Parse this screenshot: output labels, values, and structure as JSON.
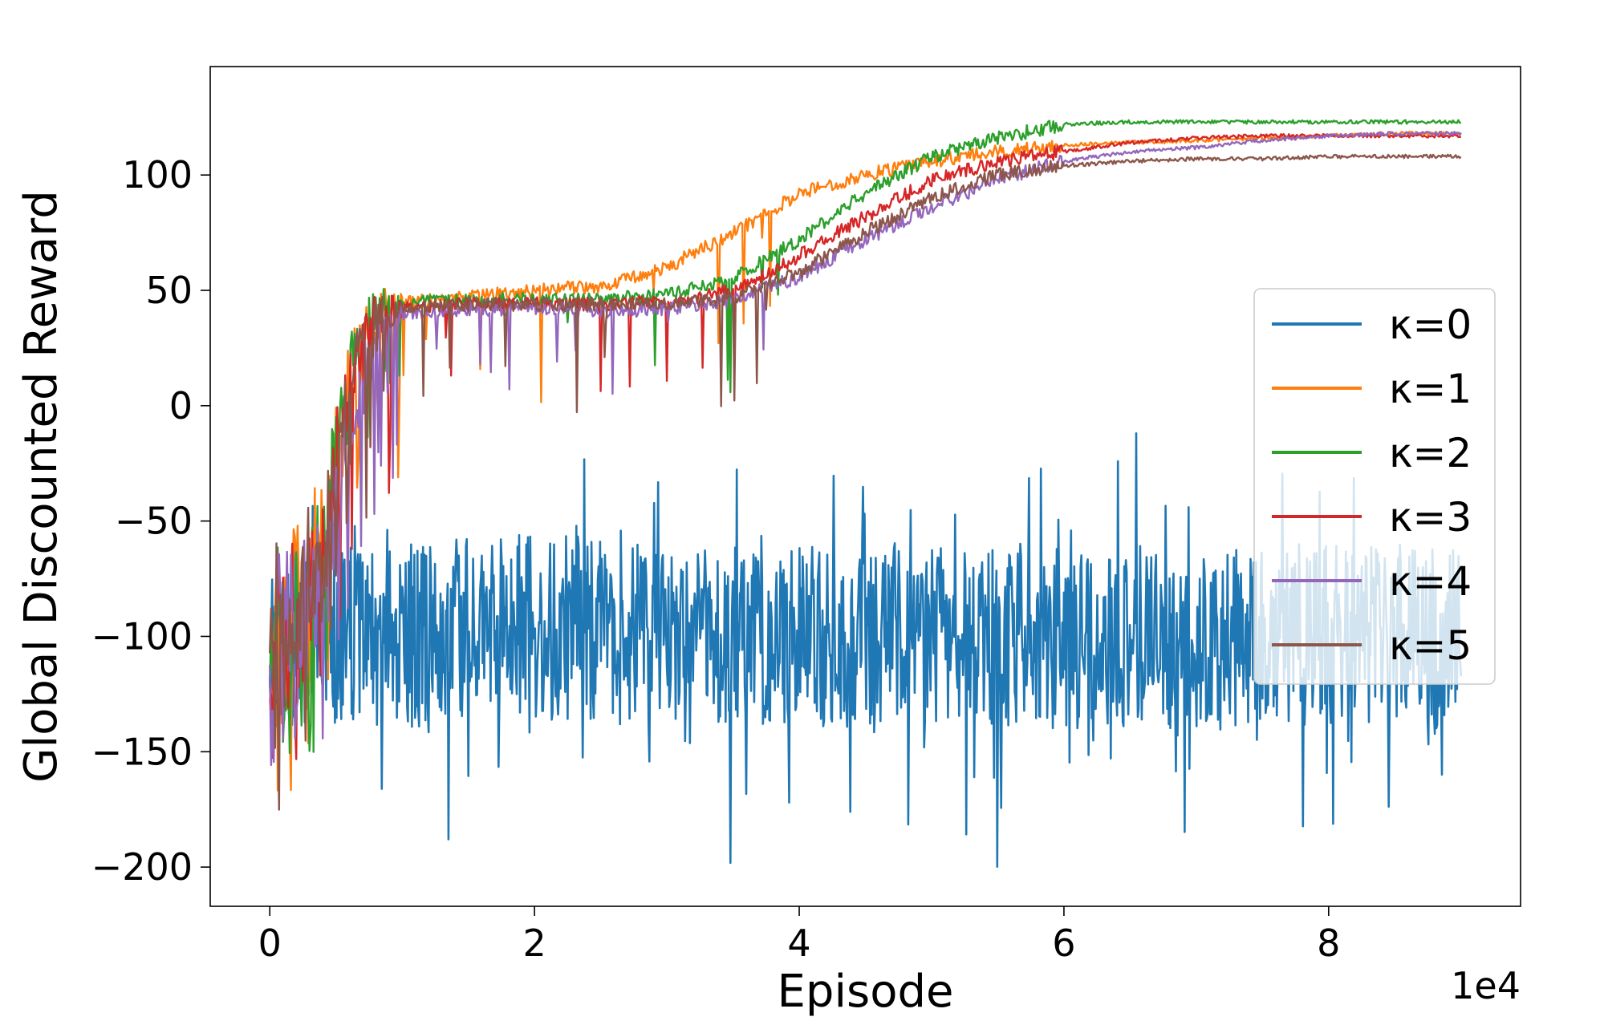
{
  "chart_data": {
    "type": "line",
    "title": "",
    "xlabel": "Episode",
    "ylabel": "Global Discounted Reward",
    "x_offset_text": "1e4",
    "xlim": [
      -0.45,
      9.45
    ],
    "ylim": [
      -217,
      147
    ],
    "x_ticks": [
      0,
      2,
      4,
      6,
      8
    ],
    "x_tick_labels": [
      "0",
      "2",
      "4",
      "6",
      "8"
    ],
    "y_ticks": [
      -200,
      -150,
      -100,
      -50,
      0,
      50,
      100
    ],
    "y_tick_labels": [
      "−200",
      "−150",
      "−100",
      "−50",
      "0",
      "50",
      "100"
    ],
    "grid": false,
    "legend_position": "center-right",
    "series": [
      {
        "name": "κ=0",
        "color": "#1f77b4",
        "x": [
          0,
          0.5,
          1,
          2,
          3,
          4,
          5,
          6,
          7,
          8,
          9
        ],
        "y": [
          -100,
          -100,
          -100,
          -95,
          -100,
          -100,
          -98,
          -100,
          -100,
          -100,
          -100
        ]
      },
      {
        "name": "κ=1",
        "color": "#ff7f0e",
        "x": [
          0,
          0.2,
          0.4,
          0.6,
          0.8,
          1,
          1.5,
          2,
          2.5,
          3,
          3.5,
          4,
          4.5,
          5,
          5.5,
          6,
          6.5,
          7,
          7.5,
          8,
          8.5,
          9
        ],
        "y": [
          -110,
          -90,
          -60,
          10,
          40,
          45,
          47,
          50,
          52,
          60,
          75,
          92,
          100,
          106,
          110,
          113,
          114,
          115,
          116,
          117,
          118,
          118
        ]
      },
      {
        "name": "κ=2",
        "color": "#2ca02c",
        "x": [
          0,
          0.2,
          0.4,
          0.6,
          0.8,
          1,
          1.5,
          2,
          2.5,
          3,
          3.5,
          4,
          4.5,
          5,
          5.5,
          6,
          6.5,
          7,
          7.5,
          8,
          8.5,
          9
        ],
        "y": [
          -110,
          -95,
          -60,
          10,
          40,
          44,
          46,
          46,
          46,
          48,
          55,
          72,
          92,
          108,
          116,
          122,
          123,
          123,
          123,
          123,
          123,
          123
        ]
      },
      {
        "name": "κ=3",
        "color": "#d62728",
        "x": [
          0,
          0.2,
          0.4,
          0.6,
          0.8,
          1,
          1.5,
          2,
          2.5,
          3,
          3.5,
          4,
          4.5,
          5,
          5.5,
          6,
          6.5,
          7,
          7.5,
          8,
          8.5,
          9
        ],
        "y": [
          -110,
          -95,
          -65,
          5,
          38,
          42,
          44,
          44,
          44,
          45,
          50,
          65,
          82,
          98,
          106,
          110,
          114,
          116,
          117,
          117,
          117,
          117
        ]
      },
      {
        "name": "κ=4",
        "color": "#9467bd",
        "x": [
          0,
          0.2,
          0.4,
          0.6,
          0.8,
          1,
          1.5,
          2,
          2.5,
          3,
          3.5,
          4,
          4.5,
          5,
          5.5,
          6,
          6.5,
          7,
          7.5,
          8,
          8.5,
          9
        ],
        "y": [
          -110,
          -100,
          -70,
          -10,
          30,
          40,
          42,
          42,
          41,
          42,
          46,
          56,
          72,
          86,
          98,
          106,
          110,
          112,
          115,
          117,
          118,
          118
        ]
      },
      {
        "name": "κ=5",
        "color": "#8c564b",
        "x": [
          0,
          0.2,
          0.4,
          0.6,
          0.8,
          1,
          1.5,
          2,
          2.5,
          3,
          3.5,
          4,
          4.5,
          5,
          5.5,
          6,
          6.5,
          7,
          7.5,
          8,
          8.5,
          9
        ],
        "y": [
          -110,
          -95,
          -60,
          5,
          35,
          42,
          44,
          44,
          44,
          44,
          47,
          58,
          75,
          90,
          100,
          104,
          106,
          107,
          107,
          108,
          108,
          108
        ]
      }
    ]
  }
}
